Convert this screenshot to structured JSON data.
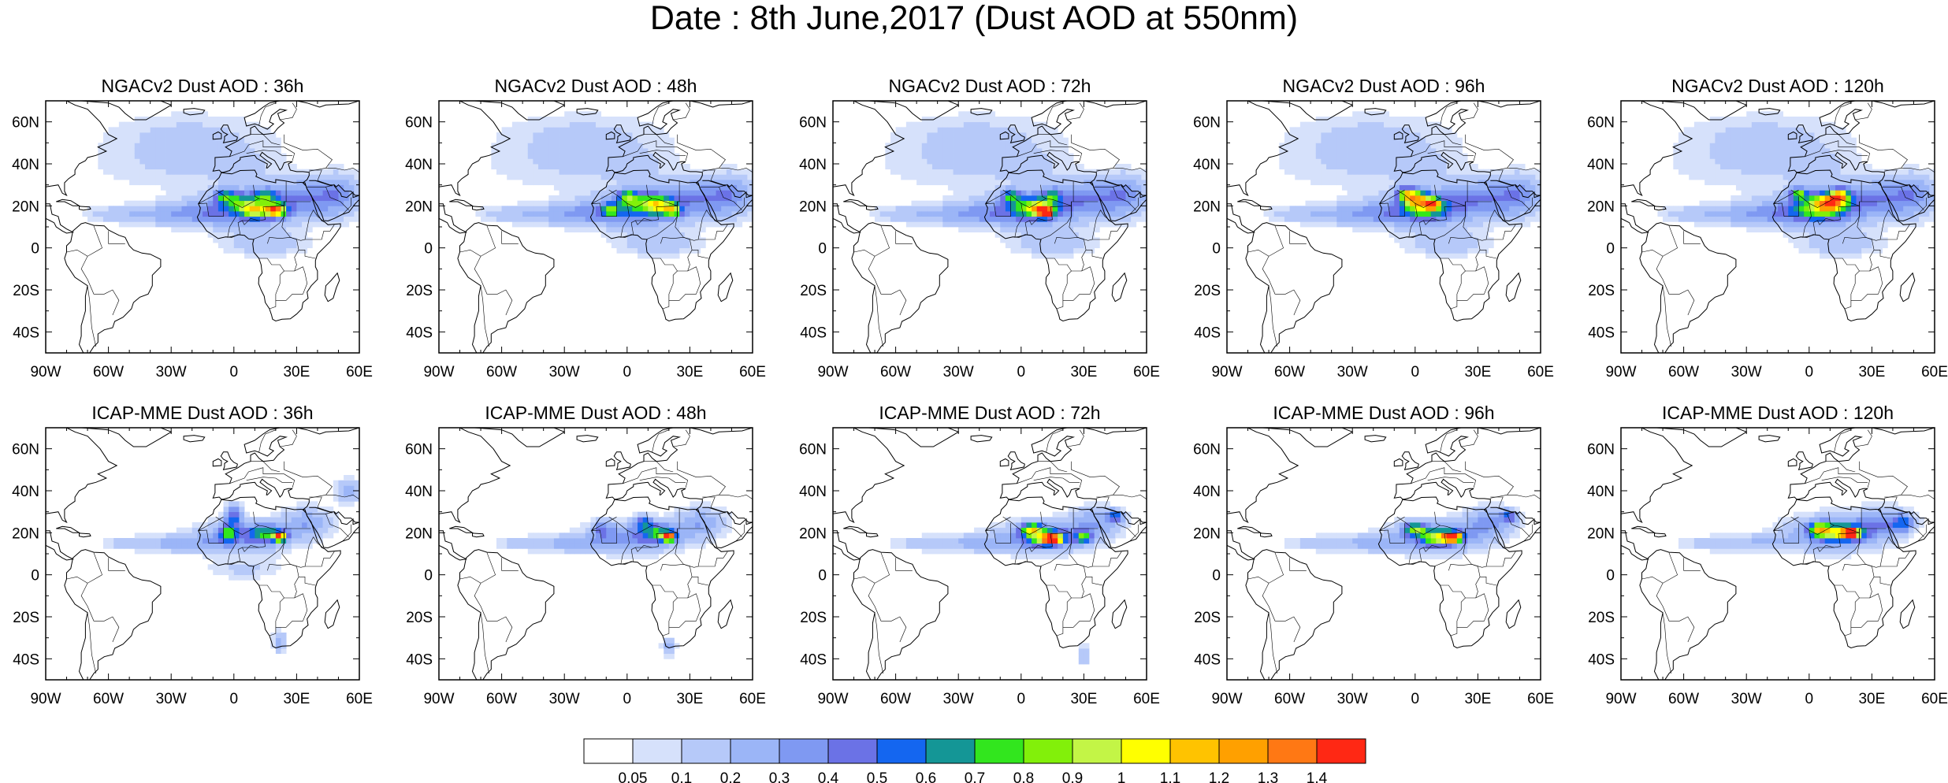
{
  "figure_title": "Date : 8th June,2017 (Dust AOD at 550nm)",
  "panels": [
    {
      "title": "NGACv2 Dust AOD : 36h",
      "model": "NGACv2",
      "lead": "36h"
    },
    {
      "title": "NGACv2 Dust AOD : 48h",
      "model": "NGACv2",
      "lead": "48h"
    },
    {
      "title": "NGACv2 Dust AOD : 72h",
      "model": "NGACv2",
      "lead": "72h"
    },
    {
      "title": "NGACv2 Dust AOD : 96h",
      "model": "NGACv2",
      "lead": "96h"
    },
    {
      "title": "NGACv2 Dust AOD : 120h",
      "model": "NGACv2",
      "lead": "120h"
    },
    {
      "title": "ICAP-MME Dust AOD : 36h",
      "model": "ICAP-MME",
      "lead": "36h"
    },
    {
      "title": "ICAP-MME Dust AOD : 48h",
      "model": "ICAP-MME",
      "lead": "48h"
    },
    {
      "title": "ICAP-MME Dust AOD : 72h",
      "model": "ICAP-MME",
      "lead": "72h"
    },
    {
      "title": "ICAP-MME Dust AOD : 96h",
      "model": "ICAP-MME",
      "lead": "96h"
    },
    {
      "title": "ICAP-MME Dust AOD : 120h",
      "model": "ICAP-MME",
      "lead": "120h"
    }
  ],
  "map": {
    "lat_ticks": [
      "60N",
      "40N",
      "20N",
      "0",
      "20S",
      "40S"
    ],
    "lat_values": [
      60,
      40,
      20,
      0,
      -20,
      -40
    ],
    "lon_ticks": [
      "90W",
      "60W",
      "30W",
      "0",
      "30E",
      "60E"
    ],
    "lon_values": [
      -90,
      -60,
      -30,
      0,
      30,
      60
    ],
    "lat_range": [
      -50,
      70
    ],
    "lon_range": [
      -90,
      60
    ]
  },
  "colorbar": {
    "labels": [
      "0.05",
      "0.1",
      "0.2",
      "0.3",
      "0.4",
      "0.5",
      "0.6",
      "0.7",
      "0.8",
      "0.9",
      "1",
      "1.1",
      "1.2",
      "1.3",
      "1.4"
    ],
    "colors": [
      "#ffffff",
      "#d6e1fb",
      "#b6c9f9",
      "#9bb5f7",
      "#7f99f2",
      "#6b72e6",
      "#1466f0",
      "#149696",
      "#32e61e",
      "#82f00a",
      "#c3f546",
      "#ffff00",
      "#ffc300",
      "#ffa000",
      "#ff7814",
      "#ff2814"
    ]
  }
}
